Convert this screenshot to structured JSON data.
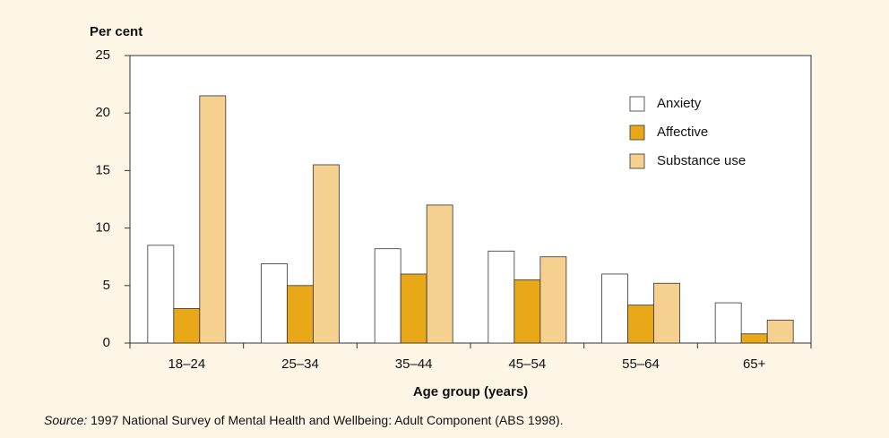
{
  "chart_data": {
    "type": "bar",
    "ylabel": "Per cent",
    "xlabel": "Age group (years)",
    "source_label": "Source:",
    "source_text": "1997 National Survey of Mental Health and Wellbeing: Adult Component (ABS 1998).",
    "categories": [
      "18–24",
      "25–34",
      "35–44",
      "45–54",
      "55–64",
      "65+"
    ],
    "series": [
      {
        "name": "Anxiety",
        "color": "#ffffff",
        "values": [
          8.5,
          6.9,
          8.2,
          8.0,
          6.0,
          3.5
        ]
      },
      {
        "name": "Affective",
        "color": "#e8a817",
        "values": [
          3.0,
          5.0,
          6.0,
          5.5,
          3.3,
          0.8
        ]
      },
      {
        "name": "Substance use",
        "color": "#f5d08e",
        "values": [
          21.5,
          15.5,
          12.0,
          7.5,
          5.2,
          2.0
        ]
      }
    ],
    "ylim": [
      0,
      25
    ],
    "yticks": [
      0,
      5,
      10,
      15,
      20,
      25
    ],
    "legend": "upper right"
  }
}
